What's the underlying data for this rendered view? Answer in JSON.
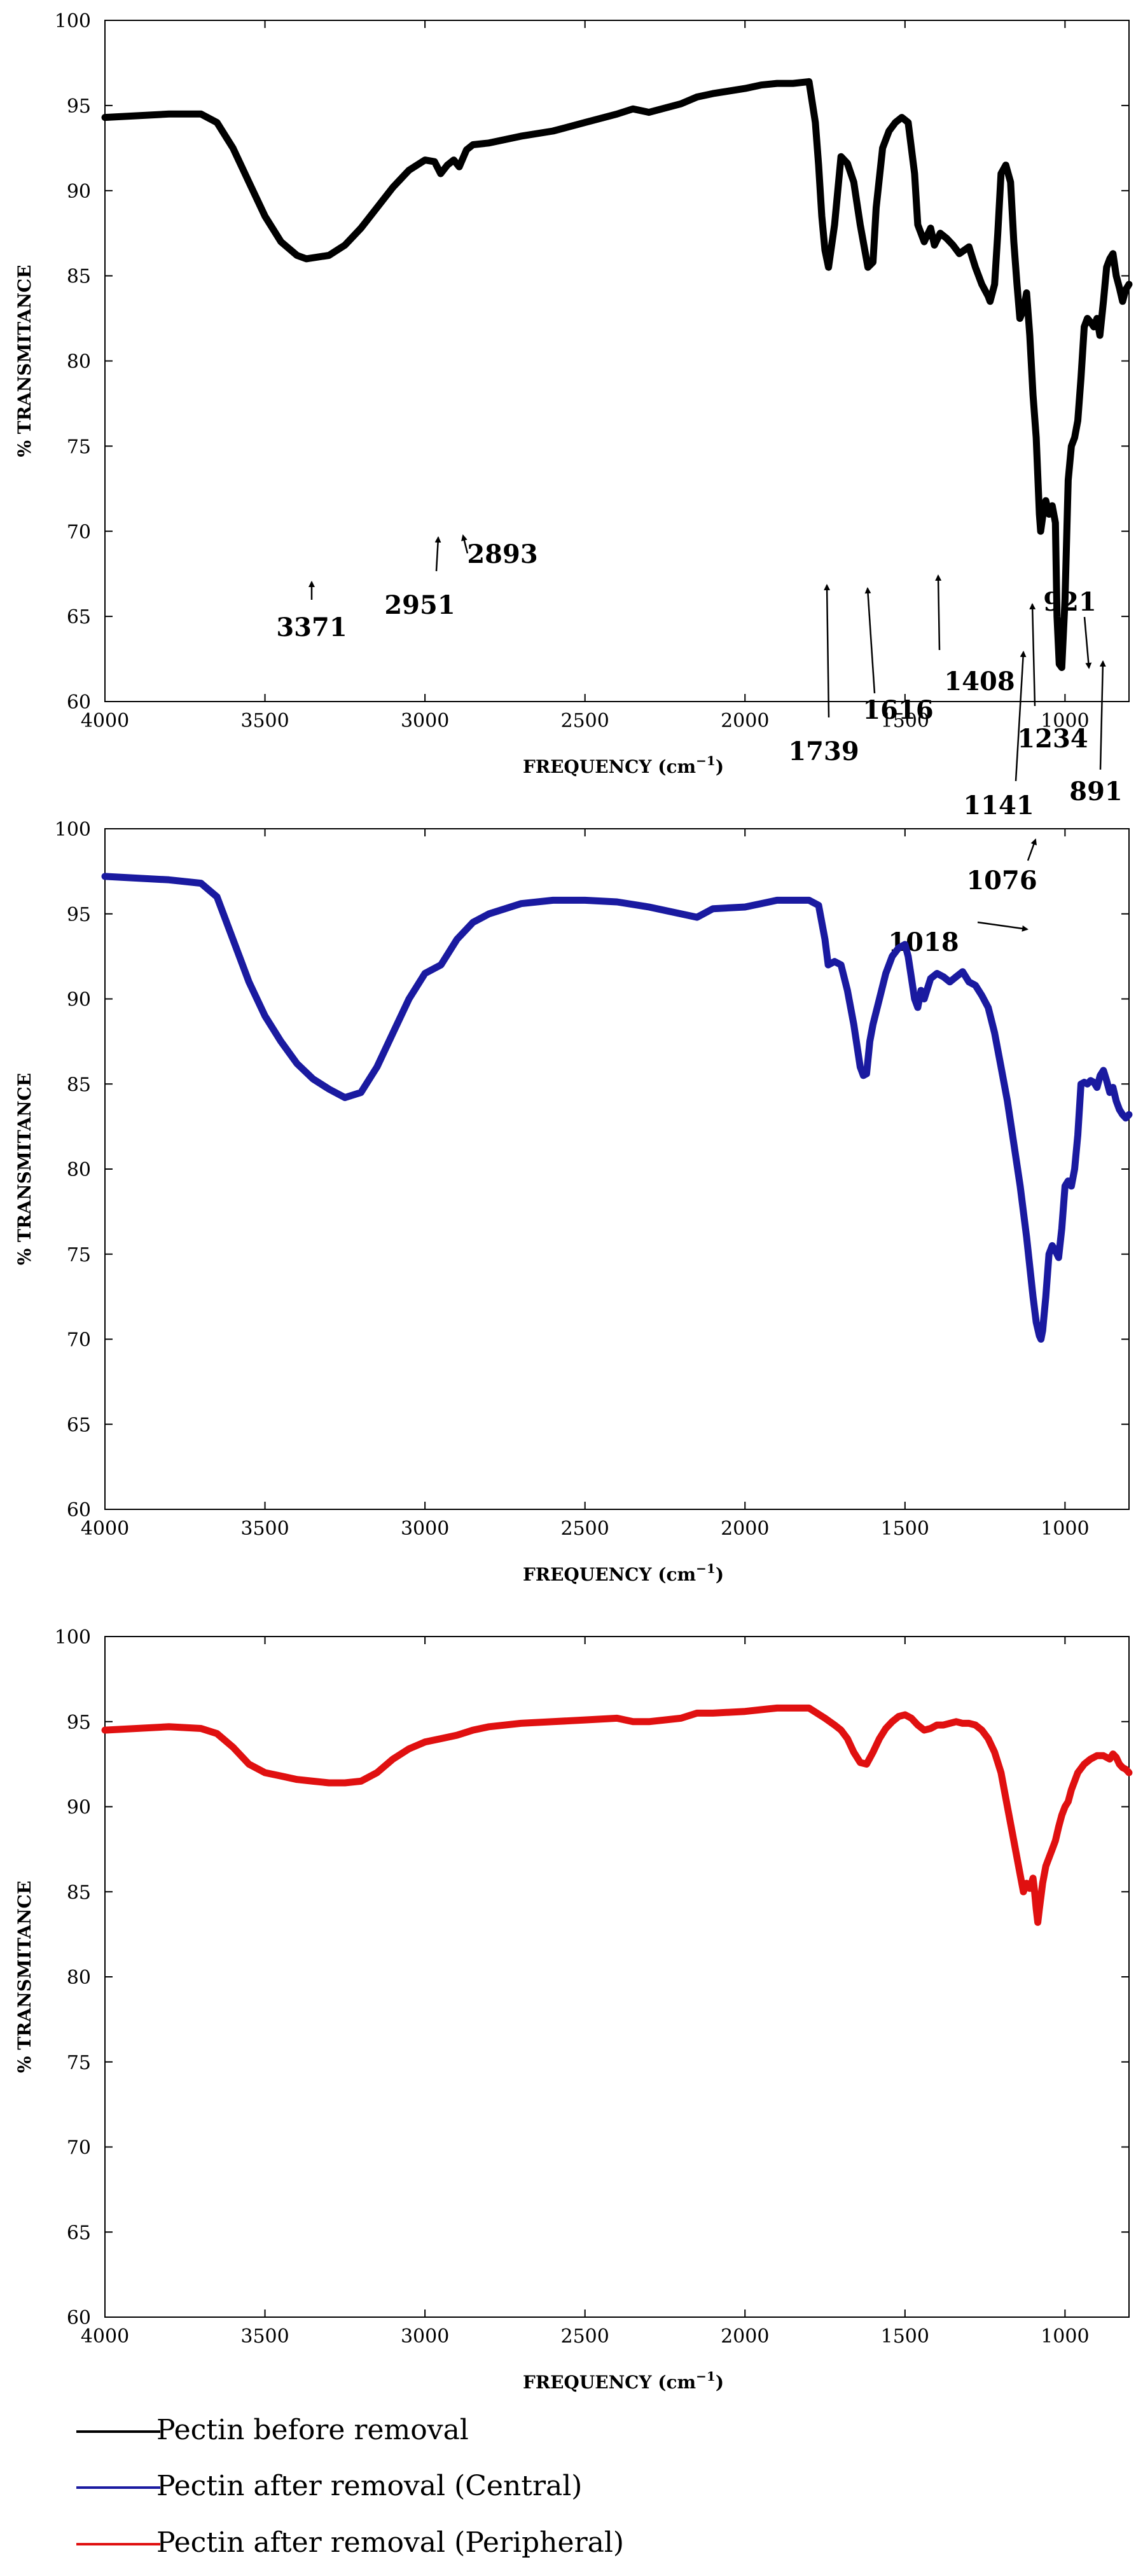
{
  "chart_data": [
    {
      "type": "line",
      "id": "before",
      "series": [
        {
          "name": "Pectin before removal",
          "color": "#000000",
          "x": [
            4000,
            3800,
            3700,
            3650,
            3600,
            3550,
            3500,
            3450,
            3400,
            3371,
            3300,
            3250,
            3200,
            3150,
            3100,
            3050,
            3000,
            2970,
            2951,
            2930,
            2910,
            2893,
            2870,
            2850,
            2800,
            2700,
            2600,
            2500,
            2400,
            2350,
            2300,
            2200,
            2150,
            2100,
            2000,
            1950,
            1900,
            1850,
            1800,
            1780,
            1770,
            1760,
            1750,
            1739,
            1720,
            1700,
            1680,
            1660,
            1640,
            1616,
            1600,
            1590,
            1570,
            1550,
            1530,
            1510,
            1490,
            1470,
            1460,
            1440,
            1420,
            1408,
            1390,
            1370,
            1350,
            1330,
            1300,
            1280,
            1260,
            1240,
            1234,
            1220,
            1210,
            1200,
            1185,
            1170,
            1160,
            1150,
            1141,
            1130,
            1120,
            1110,
            1100,
            1090,
            1080,
            1076,
            1065,
            1060,
            1050,
            1040,
            1030,
            1025,
            1018,
            1010,
            1000,
            990,
            980,
            970,
            960,
            950,
            940,
            930,
            921,
            910,
            900,
            891,
            880,
            870,
            860,
            850,
            840,
            830,
            820,
            810,
            800
          ],
          "y": [
            94.3,
            94.5,
            94.5,
            94.0,
            92.5,
            90.5,
            88.5,
            87.0,
            86.2,
            86.0,
            86.2,
            86.8,
            87.8,
            89.0,
            90.2,
            91.2,
            91.8,
            91.7,
            91.0,
            91.5,
            91.8,
            91.4,
            92.4,
            92.7,
            92.8,
            93.2,
            93.5,
            94.0,
            94.5,
            94.8,
            94.6,
            95.1,
            95.5,
            95.7,
            96.0,
            96.2,
            96.3,
            96.3,
            96.4,
            94.0,
            91.5,
            88.5,
            86.5,
            85.5,
            88.0,
            92.0,
            91.6,
            90.5,
            88.0,
            85.5,
            85.8,
            89.0,
            92.5,
            93.5,
            94.0,
            94.3,
            94.0,
            91.0,
            88.0,
            87.0,
            87.8,
            86.8,
            87.5,
            87.2,
            86.8,
            86.3,
            86.7,
            85.5,
            84.5,
            83.8,
            83.5,
            84.5,
            87.5,
            91.0,
            91.5,
            90.5,
            87.0,
            84.5,
            82.5,
            83.0,
            84.0,
            81.5,
            78.0,
            75.5,
            71.0,
            70.0,
            71.5,
            71.8,
            71.0,
            71.5,
            70.5,
            65.0,
            62.2,
            62.0,
            66.0,
            73.0,
            75.0,
            75.5,
            76.5,
            79.0,
            82.0,
            82.5,
            82.3,
            82.0,
            82.5,
            81.5,
            83.5,
            85.5,
            86.0,
            86.3,
            85.0,
            84.3,
            83.5,
            84.2,
            84.5
          ]
        }
      ],
      "xlim": [
        4000,
        800
      ],
      "ylim": [
        60,
        100
      ],
      "xticks": [
        4000,
        3500,
        3000,
        2500,
        2000,
        1500,
        1000
      ],
      "yticks": [
        60,
        65,
        70,
        75,
        80,
        85,
        90,
        95,
        100
      ],
      "xtick_labels": [
        "4000",
        "3500",
        "3000",
        "2500",
        "2000",
        "1500",
        "1000"
      ],
      "ytick_labels": [
        "60",
        "65",
        "70",
        "75",
        "80",
        "85",
        "90",
        "95",
        "100"
      ],
      "xlabel_prefix": "FREQUENCY (cm",
      "xlabel_sup": "−1",
      "xlabel_suffix": ")",
      "ylabel": "% TRANSMITANCE",
      "annotations": [
        {
          "text": "3371",
          "x": 3371,
          "y": 86.0
        },
        {
          "text": "2951",
          "x": 2951,
          "y": 91.0
        },
        {
          "text": "2893",
          "x": 2893,
          "y": 91.4
        },
        {
          "text": "1739",
          "x": 1739,
          "y": 85.5
        },
        {
          "text": "1616",
          "x": 1616,
          "y": 85.5
        },
        {
          "text": "1408",
          "x": 1408,
          "y": 86.8
        },
        {
          "text": "1234",
          "x": 1234,
          "y": 83.5
        },
        {
          "text": "1141",
          "x": 1141,
          "y": 82.5
        },
        {
          "text": "1076",
          "x": 1076,
          "y": 70.0
        },
        {
          "text": "1018",
          "x": 1018,
          "y": 62.0
        },
        {
          "text": "921",
          "x": 921,
          "y": 82.3
        },
        {
          "text": "891",
          "x": 891,
          "y": 81.5
        }
      ]
    },
    {
      "type": "line",
      "id": "central",
      "series": [
        {
          "name": "Pectin after removal (Central)",
          "color": "#1a1aa0",
          "x": [
            4000,
            3800,
            3700,
            3650,
            3600,
            3550,
            3500,
            3450,
            3400,
            3350,
            3300,
            3250,
            3200,
            3150,
            3100,
            3050,
            3000,
            2950,
            2900,
            2850,
            2800,
            2700,
            2600,
            2500,
            2400,
            2300,
            2200,
            2150,
            2100,
            2000,
            1950,
            1900,
            1800,
            1770,
            1750,
            1740,
            1720,
            1700,
            1680,
            1660,
            1640,
            1630,
            1620,
            1610,
            1600,
            1580,
            1560,
            1540,
            1520,
            1500,
            1490,
            1470,
            1460,
            1450,
            1440,
            1420,
            1400,
            1380,
            1360,
            1340,
            1320,
            1300,
            1280,
            1260,
            1240,
            1220,
            1200,
            1180,
            1160,
            1140,
            1120,
            1100,
            1090,
            1080,
            1075,
            1070,
            1060,
            1050,
            1040,
            1030,
            1020,
            1010,
            1000,
            990,
            980,
            970,
            960,
            950,
            940,
            930,
            920,
            910,
            900,
            890,
            880,
            870,
            860,
            850,
            840,
            830,
            820,
            810,
            800
          ],
          "y": [
            97.2,
            97.0,
            96.8,
            96.0,
            93.5,
            91.0,
            89.0,
            87.5,
            86.2,
            85.3,
            84.7,
            84.2,
            84.5,
            86.0,
            88.0,
            90.0,
            91.5,
            92.0,
            93.5,
            94.5,
            95.0,
            95.6,
            95.8,
            95.8,
            95.7,
            95.4,
            95.0,
            94.8,
            95.3,
            95.4,
            95.6,
            95.8,
            95.8,
            95.5,
            93.5,
            92.0,
            92.2,
            92.0,
            90.5,
            88.5,
            86.0,
            85.5,
            85.6,
            87.5,
            88.5,
            90.0,
            91.5,
            92.5,
            93.0,
            93.2,
            92.5,
            90.0,
            89.5,
            90.5,
            90.0,
            91.2,
            91.5,
            91.3,
            91.0,
            91.3,
            91.6,
            91.0,
            90.8,
            90.2,
            89.5,
            88.0,
            86.0,
            84.0,
            81.5,
            79.0,
            76.0,
            72.5,
            71.0,
            70.2,
            70.0,
            70.5,
            72.5,
            75.0,
            75.5,
            75.2,
            74.8,
            76.5,
            79.0,
            79.3,
            79.0,
            80.0,
            82.0,
            85.0,
            85.1,
            85.0,
            85.2,
            85.1,
            84.8,
            85.5,
            85.8,
            85.2,
            84.5,
            84.8,
            84.0,
            83.5,
            83.2,
            83.0,
            83.2
          ]
        }
      ],
      "xlim": [
        4000,
        800
      ],
      "ylim": [
        60,
        100
      ],
      "xticks": [
        4000,
        3500,
        3000,
        2500,
        2000,
        1500,
        1000
      ],
      "yticks": [
        60,
        65,
        70,
        75,
        80,
        85,
        90,
        95,
        100
      ],
      "xtick_labels": [
        "4000",
        "3500",
        "3000",
        "2500",
        "2000",
        "1500",
        "1000"
      ],
      "ytick_labels": [
        "60",
        "65",
        "70",
        "75",
        "80",
        "85",
        "90",
        "95",
        "100"
      ],
      "xlabel_prefix": "FREQUENCY (cm",
      "xlabel_sup": "−1",
      "xlabel_suffix": ")",
      "ylabel": "% TRANSMITANCE",
      "annotations": []
    },
    {
      "type": "line",
      "id": "peripheral",
      "series": [
        {
          "name": "Pectin after removal (Peripheral)",
          "color": "#e01010",
          "x": [
            4000,
            3800,
            3700,
            3650,
            3600,
            3550,
            3500,
            3450,
            3400,
            3350,
            3300,
            3250,
            3200,
            3150,
            3100,
            3050,
            3000,
            2950,
            2900,
            2850,
            2800,
            2700,
            2600,
            2500,
            2400,
            2350,
            2300,
            2200,
            2150,
            2100,
            2000,
            1950,
            1900,
            1800,
            1750,
            1720,
            1700,
            1680,
            1660,
            1640,
            1620,
            1600,
            1580,
            1560,
            1540,
            1520,
            1500,
            1480,
            1460,
            1440,
            1420,
            1400,
            1380,
            1360,
            1340,
            1320,
            1300,
            1280,
            1260,
            1240,
            1220,
            1200,
            1180,
            1160,
            1150,
            1140,
            1130,
            1120,
            1110,
            1100,
            1095,
            1090,
            1085,
            1080,
            1070,
            1060,
            1050,
            1040,
            1030,
            1020,
            1010,
            1000,
            990,
            980,
            960,
            940,
            920,
            900,
            880,
            860,
            850,
            840,
            830,
            820,
            810,
            800
          ],
          "y": [
            94.5,
            94.7,
            94.6,
            94.3,
            93.5,
            92.5,
            92.0,
            91.8,
            91.6,
            91.5,
            91.4,
            91.4,
            91.5,
            92.0,
            92.8,
            93.4,
            93.8,
            94.0,
            94.2,
            94.5,
            94.7,
            94.9,
            95.0,
            95.1,
            95.2,
            95.0,
            95.0,
            95.2,
            95.5,
            95.5,
            95.6,
            95.7,
            95.8,
            95.8,
            95.2,
            94.8,
            94.5,
            94.0,
            93.2,
            92.6,
            92.5,
            93.2,
            94.0,
            94.6,
            95.0,
            95.3,
            95.4,
            95.2,
            94.8,
            94.5,
            94.6,
            94.8,
            94.8,
            94.9,
            95.0,
            94.9,
            94.9,
            94.8,
            94.5,
            94.0,
            93.2,
            92.0,
            90.0,
            88.0,
            87.0,
            86.0,
            85.0,
            85.5,
            85.2,
            85.8,
            85.0,
            84.0,
            83.2,
            84.0,
            85.5,
            86.5,
            87.0,
            87.5,
            88.0,
            88.8,
            89.5,
            90.0,
            90.3,
            91.0,
            92.0,
            92.5,
            92.8,
            93.0,
            93.0,
            92.8,
            93.1,
            92.9,
            92.5,
            92.3,
            92.2,
            92.0
          ]
        }
      ],
      "xlim": [
        4000,
        800
      ],
      "ylim": [
        60,
        100
      ],
      "xticks": [
        4000,
        3500,
        3000,
        2500,
        2000,
        1500,
        1000
      ],
      "yticks": [
        60,
        65,
        70,
        75,
        80,
        85,
        90,
        95,
        100
      ],
      "xtick_labels": [
        "4000",
        "3500",
        "3000",
        "2500",
        "2000",
        "1500",
        "1000"
      ],
      "ytick_labels": [
        "60",
        "65",
        "70",
        "75",
        "80",
        "85",
        "90",
        "95",
        "100"
      ],
      "xlabel_prefix": "FREQUENCY (cm",
      "xlabel_sup": "−1",
      "xlabel_suffix": ")",
      "ylabel": "% TRANSMITANCE",
      "annotations": []
    }
  ],
  "legend": [
    {
      "label": "Pectin before removal",
      "color": "#000000"
    },
    {
      "label": "Pectin after removal (Central)",
      "color": "#1a1aa0"
    },
    {
      "label": "Pectin after removal (Peripheral)",
      "color": "#e01010"
    }
  ]
}
